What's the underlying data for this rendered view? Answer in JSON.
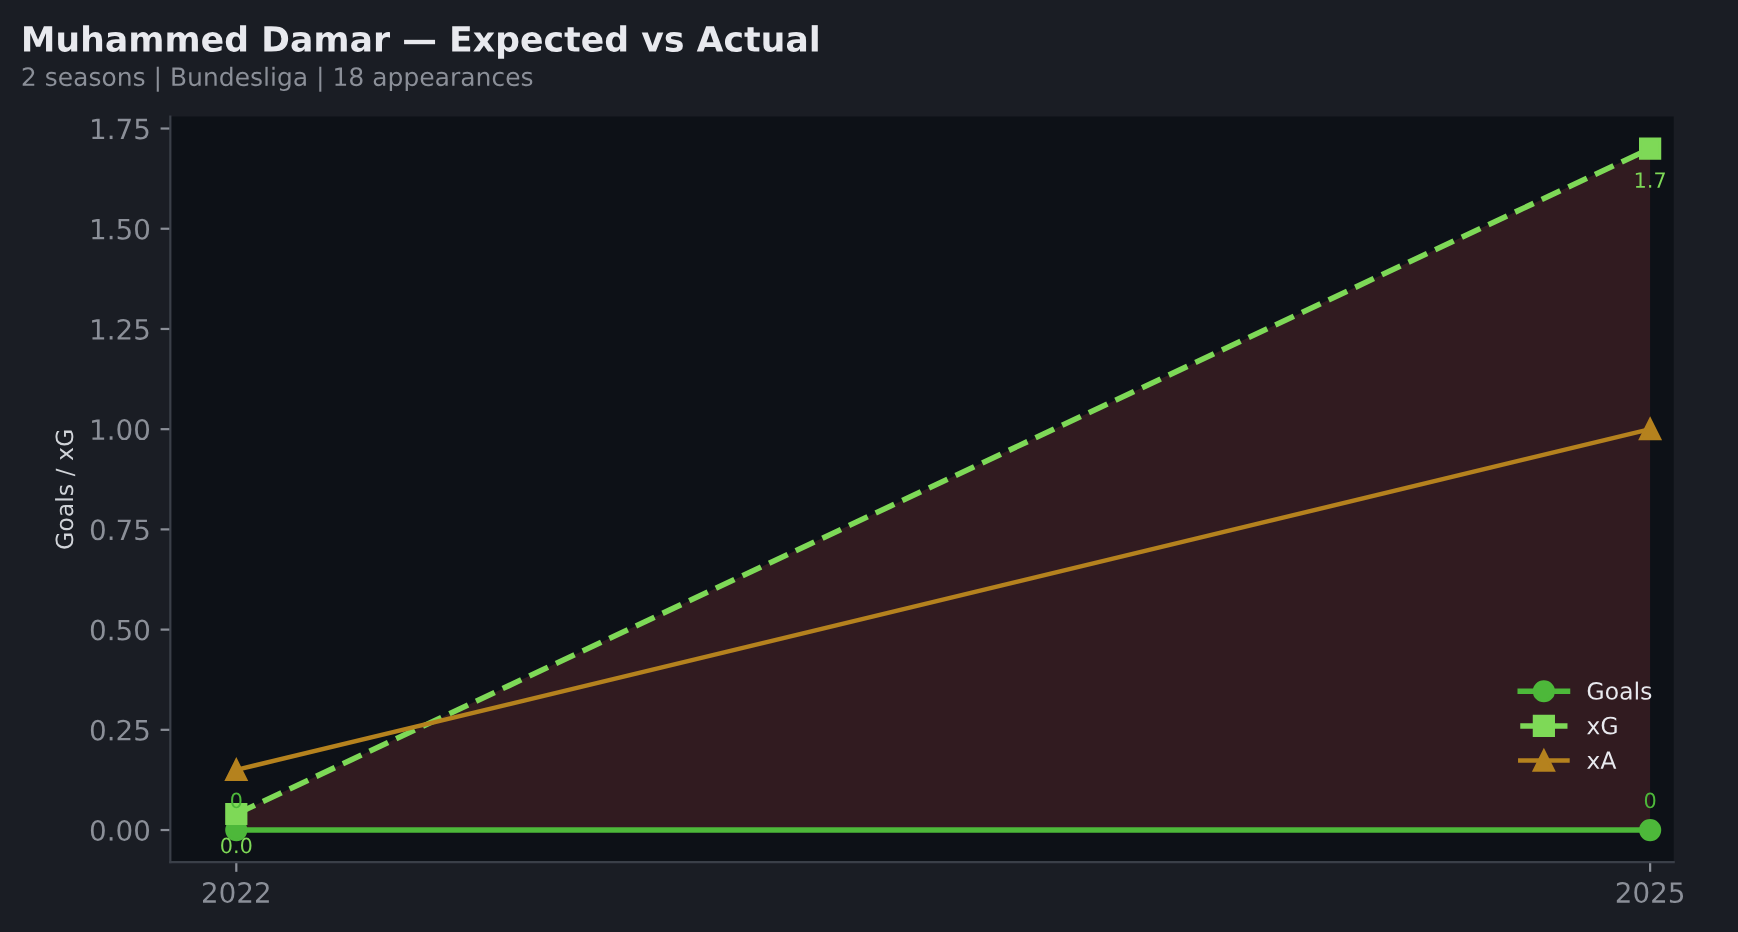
{
  "chart_data": {
    "type": "line",
    "title": "Muhammed Damar — Expected vs Actual",
    "subtitle": "2 seasons | Bundesliga | 18 appearances",
    "ylabel": "Goals / xG",
    "x": [
      2022,
      2025
    ],
    "xlim": [
      2021.86,
      2025.05
    ],
    "xticks": [
      2022,
      2025
    ],
    "series": [
      {
        "name": "Goals",
        "color": "#4db83a",
        "values": [
          0,
          0
        ],
        "marker": "circle",
        "line_style": "solid",
        "value_labels": [
          "0",
          "0"
        ]
      },
      {
        "name": "xG",
        "color": "#7ed957",
        "values": [
          0.04,
          1.7
        ],
        "marker": "square",
        "line_style": "dashed",
        "value_labels": [
          "0.0",
          "1.7"
        ],
        "lower": [
          0,
          0
        ],
        "upper": [
          0.04,
          1.7
        ]
      },
      {
        "name": "xA",
        "color": "#b5821e",
        "values": [
          0.15,
          1.0
        ],
        "marker": "triangle",
        "line_style": "solid"
      }
    ],
    "ylim": [
      -0.08,
      1.78
    ],
    "yticks": [
      {
        "value": 0,
        "label": "0.00"
      },
      0.25,
      {
        "value": 0.5,
        "label": "0.50"
      },
      0.75,
      {
        "value": 1,
        "label": "1.00"
      },
      1.25,
      {
        "value": 1.5,
        "label": "1.50"
      },
      1.75
    ],
    "legend": "bottom right"
  }
}
